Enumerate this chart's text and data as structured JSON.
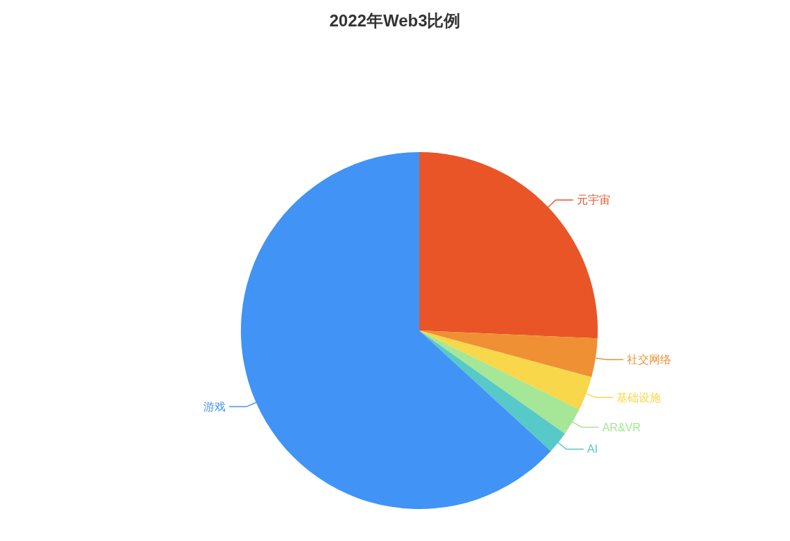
{
  "chart_data": {
    "type": "pie",
    "title": "2022年Web3比例",
    "categories": [
      "元宇宙",
      "社交网络",
      "基础设施",
      "AR&VR",
      "AI",
      "游戏"
    ],
    "values": [
      25.7,
      3.5,
      3.1,
      2.5,
      2.0,
      63.2
    ],
    "colors": [
      "#e95527",
      "#ef9034",
      "#f8d74a",
      "#a5e796",
      "#57c9c9",
      "#4193f6"
    ]
  }
}
